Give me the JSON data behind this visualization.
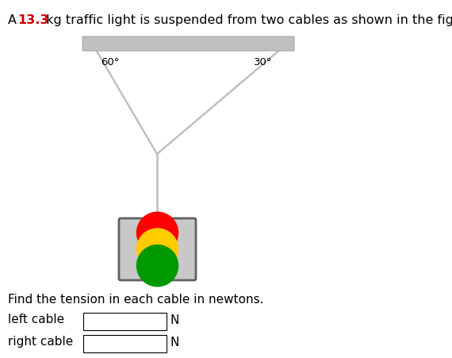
{
  "bg_color": "#ffffff",
  "title_mass": "13.3",
  "title_color": "#cc0000",
  "title_fontsize": 11.5,
  "ceiling_color": "#c0c0c0",
  "ceiling_edge_color": "#a8a8a8",
  "cable_color": "#c0c0c0",
  "cable_lw": 1.8,
  "left_angle_label": "60°",
  "right_angle_label": "30°",
  "traffic_light_bg": "#c8c8c8",
  "traffic_light_border": "#606060",
  "light_colors": [
    "#ff0000",
    "#ffcc00",
    "#009900"
  ],
  "question_text": "Find the tension in each cable in newtons.",
  "label_left": "left cable",
  "label_right": "right cable",
  "question_fontsize": 11,
  "label_fontsize": 11,
  "N_fontsize": 11
}
